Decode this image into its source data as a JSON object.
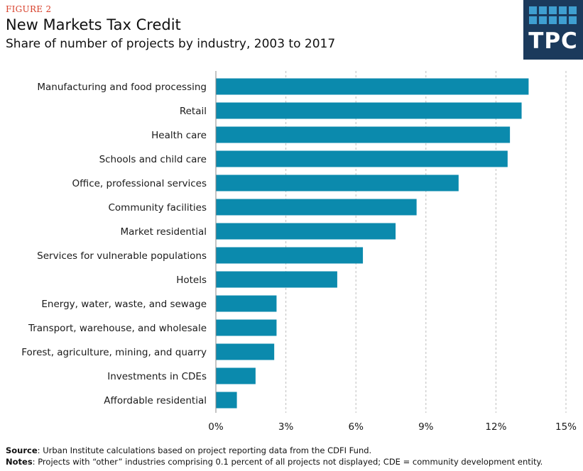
{
  "header": {
    "figure_label": "FIGURE 2",
    "title": "New Markets Tax Credit",
    "subtitle": "Share of number of projects by industry, 2003 to 2017"
  },
  "logo": {
    "text": "TPC",
    "bg_color": "#1b3a5c",
    "square_color": "#3f9fd0"
  },
  "chart_data": {
    "type": "bar",
    "orientation": "horizontal",
    "categories": [
      "Manufacturing and food processing",
      "Retail",
      "Health care",
      "Schools and child care",
      "Office, professional services",
      "Community facilities",
      "Market residential",
      "Services for vulnerable populations",
      "Hotels",
      "Energy, water, waste, and sewage",
      "Transport, warehouse, and wholesale",
      "Forest, agriculture, mining, and quarry",
      "Investments in CDEs",
      "Affordable residential"
    ],
    "values": [
      13.4,
      13.1,
      12.6,
      12.5,
      10.4,
      8.6,
      7.7,
      6.3,
      5.2,
      2.6,
      2.6,
      2.5,
      1.7,
      0.9
    ],
    "xlim": [
      0,
      15
    ],
    "ticks": [
      0,
      3,
      6,
      9,
      12,
      15
    ],
    "tick_labels": [
      "0%",
      "3%",
      "6%",
      "9%",
      "12%",
      "15%"
    ],
    "grid": true,
    "bar_color": "#0b8aad"
  },
  "footer": {
    "source_label": "Source",
    "source_text": ": Urban Institute calculations based on project reporting data from the CDFI Fund.",
    "notes_label": "Notes",
    "notes_text": ": Projects with “other” industries comprising 0.1 percent of all projects not displayed; CDE = community development entity."
  }
}
